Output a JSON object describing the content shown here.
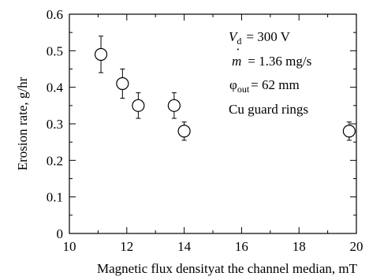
{
  "chart_data": {
    "type": "scatter",
    "title": "",
    "xlabel": "Magnetic flux densityat the channel median, mT",
    "ylabel": "Erosion rate, g/hr",
    "xlim": [
      10,
      20
    ],
    "ylim": [
      0,
      0.6
    ],
    "xticks": [
      "10",
      "12",
      "14",
      "16",
      "18",
      "20"
    ],
    "yticks": [
      "0",
      "0.1",
      "0.2",
      "0.3",
      "0.4",
      "0.5",
      "0.6"
    ],
    "grid": false,
    "marker": "open-circle",
    "points": [
      {
        "x": 11.1,
        "y": 0.49,
        "err": 0.05
      },
      {
        "x": 11.85,
        "y": 0.41,
        "err": 0.04
      },
      {
        "x": 12.4,
        "y": 0.35,
        "err": 0.035
      },
      {
        "x": 13.65,
        "y": 0.35,
        "err": 0.035
      },
      {
        "x": 14.0,
        "y": 0.28,
        "err": 0.025
      },
      {
        "x": 19.75,
        "y": 0.28,
        "err": 0.025
      }
    ],
    "annotations": {
      "vd": {
        "sym": "V",
        "sub": "d",
        "val": "= 300 V"
      },
      "mdot": {
        "sym": "m",
        "dot": "·",
        "val": "= 1.36 mg/s"
      },
      "phi": {
        "sym": "φ",
        "sub": "out",
        "val": "= 62 mm"
      },
      "rings": "Cu guard rings"
    }
  }
}
